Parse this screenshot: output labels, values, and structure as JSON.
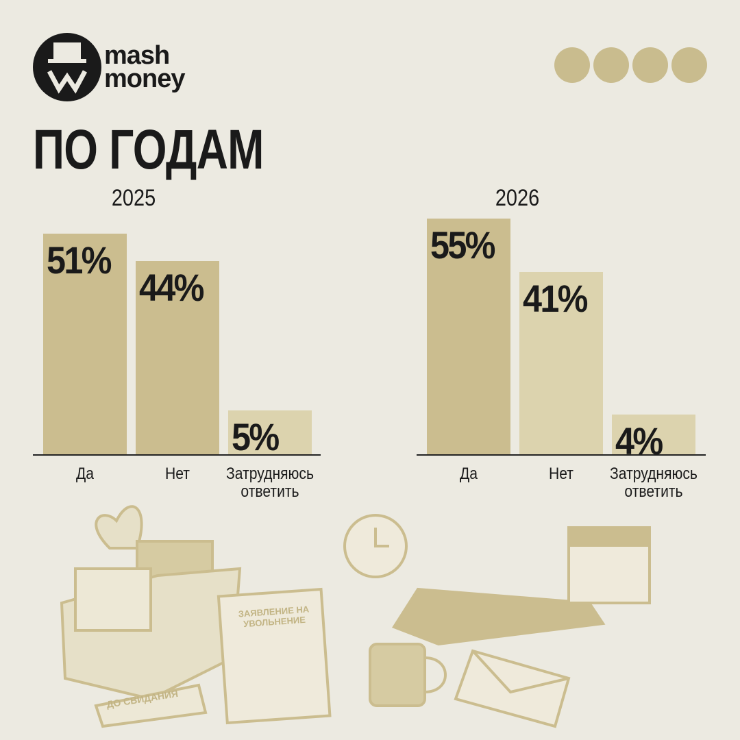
{
  "header": {
    "brand": [
      "mash",
      "money"
    ],
    "title": "ПО ГОДАМ"
  },
  "chart_data": [
    {
      "type": "bar",
      "title": "2025",
      "categories": [
        "Да",
        "Нет",
        "Затрудняюсь ответить"
      ],
      "values": [
        51,
        44,
        5
      ],
      "value_labels": [
        "51%",
        "44%",
        "5%"
      ],
      "colors": [
        "#cbbd8f",
        "#cbbd8f",
        "#dcd3ae"
      ]
    },
    {
      "type": "bar",
      "title": "2026",
      "categories": [
        "Да",
        "Нет",
        "Затрудняюсь ответить"
      ],
      "values": [
        55,
        41,
        4
      ],
      "value_labels": [
        "55%",
        "41%",
        "4%"
      ],
      "colors": [
        "#cbbd8f",
        "#dcd3ae",
        "#dcd3ae"
      ]
    }
  ],
  "illustration": {
    "letter": "ЗАЯВЛЕНИЕ НА УВОЛЬНЕНИЕ",
    "sign": "ДО СВИДАНИЯ"
  }
}
